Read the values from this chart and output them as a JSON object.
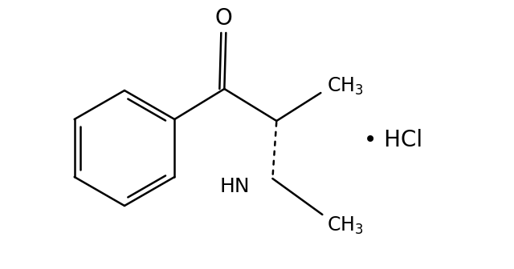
{
  "background_color": "#ffffff",
  "line_color": "#000000",
  "line_width": 1.8,
  "fig_width": 6.4,
  "fig_height": 3.36,
  "dpi": 100,
  "hcl_text": "• HCl",
  "hcl_fontsize": 20
}
